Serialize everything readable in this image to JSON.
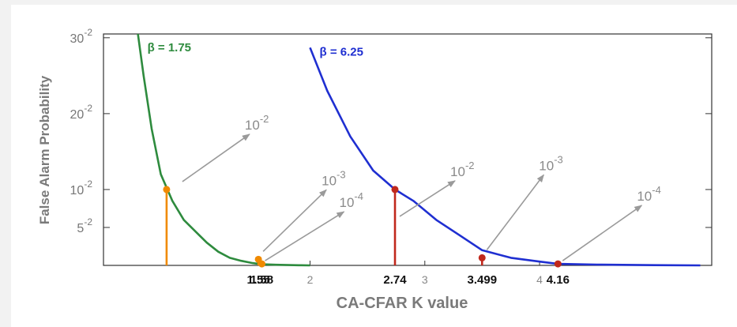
{
  "chart_data": {
    "type": "line",
    "xlabel": "CA-CFAR K value",
    "ylabel": "False Alarm Probability",
    "xlim": [
      0.2,
      5.5
    ],
    "ylim": [
      0,
      0.305
    ],
    "yticks": [
      {
        "value": 0.05,
        "base": "5",
        "exp": "-2"
      },
      {
        "value": 0.1,
        "base": "10",
        "exp": "-2"
      },
      {
        "value": 0.2,
        "base": "20",
        "exp": "-2"
      },
      {
        "value": 0.3,
        "base": "30",
        "exp": "-2"
      }
    ],
    "xticks": [
      {
        "value": 2,
        "label": "2"
      },
      {
        "value": 3,
        "label": "3"
      },
      {
        "value": 4,
        "label": "4"
      }
    ],
    "series": [
      {
        "name": "β = 1.75",
        "color": "#2e8b3e",
        "x": [
          0.5,
          0.55,
          0.62,
          0.7,
          0.8,
          0.9,
          1.0,
          1.1,
          1.2,
          1.3,
          1.4,
          1.5,
          1.55,
          1.58,
          1.7,
          1.9,
          2.0
        ],
        "y": [
          0.305,
          0.25,
          0.18,
          0.12,
          0.085,
          0.06,
          0.045,
          0.03,
          0.018,
          0.01,
          0.006,
          0.003,
          0.002,
          0.0015,
          0.0008,
          0.0002,
          0.0
        ]
      },
      {
        "name": "β = 6.25",
        "color": "#1f2fd1",
        "x": [
          2.0,
          2.15,
          2.35,
          2.55,
          2.74,
          2.9,
          3.1,
          3.3,
          3.5,
          3.75,
          4.0,
          4.16,
          4.5,
          5.0,
          5.4
        ],
        "y": [
          0.287,
          0.23,
          0.17,
          0.125,
          0.1,
          0.085,
          0.06,
          0.04,
          0.02,
          0.01,
          0.005,
          0.002,
          0.001,
          0.0003,
          0.0
        ]
      }
    ],
    "thresholds": [
      {
        "x": 0.75,
        "y": 0.1,
        "color": "#f08a00",
        "base": "10",
        "exp": "-2",
        "k_label": ""
      },
      {
        "x": 1.55,
        "y": 0.008,
        "color": "#f08a00",
        "base": "10",
        "exp": "-3",
        "k_label": "1.55"
      },
      {
        "x": 1.58,
        "y": 0.002,
        "color": "#f08a00",
        "base": "10",
        "exp": "-4",
        "k_label": "1.58"
      },
      {
        "x": 2.74,
        "y": 0.1,
        "color": "#c0281c",
        "base": "10",
        "exp": "-2",
        "k_label": "2.74"
      },
      {
        "x": 3.499,
        "y": 0.01,
        "color": "#c0281c",
        "base": "10",
        "exp": "-3",
        "k_label": "3.499"
      },
      {
        "x": 4.16,
        "y": 0.002,
        "color": "#c0281c",
        "base": "10",
        "exp": "-4",
        "k_label": "4.16"
      }
    ],
    "grid": false,
    "legend": "inline"
  }
}
